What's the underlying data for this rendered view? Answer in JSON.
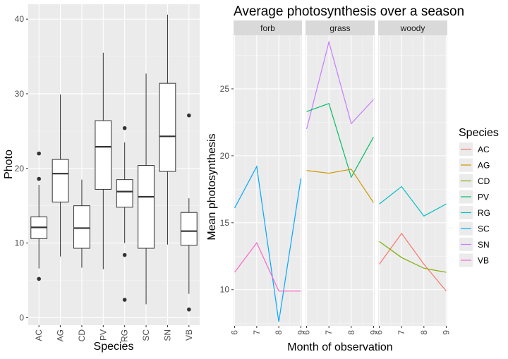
{
  "chart_data": [
    {
      "type": "box",
      "title": "",
      "xlabel": "Species",
      "ylabel": "Photo",
      "categories": [
        "AC",
        "AG",
        "CD",
        "PV",
        "RG",
        "SC",
        "SN",
        "VB"
      ],
      "ylim": [
        -1,
        42
      ],
      "y_ticks": [
        0,
        10,
        20,
        30,
        40
      ],
      "boxes": [
        {
          "category": "AC",
          "min": 6.6,
          "q1": 10.6,
          "median": 12.1,
          "q3": 13.5,
          "max": 17.8,
          "outliers": [
            22.0,
            18.6,
            5.2
          ]
        },
        {
          "category": "AG",
          "min": 8.2,
          "q1": 15.5,
          "median": 19.3,
          "q3": 21.2,
          "max": 29.9,
          "outliers": []
        },
        {
          "category": "CD",
          "min": 6.7,
          "q1": 9.3,
          "median": 12.0,
          "q3": 15.0,
          "max": 18.5,
          "outliers": []
        },
        {
          "category": "PV",
          "min": 6.5,
          "q1": 17.2,
          "median": 22.9,
          "q3": 26.4,
          "max": 35.5,
          "outliers": []
        },
        {
          "category": "RG",
          "min": 10.0,
          "q1": 14.8,
          "median": 16.9,
          "q3": 18.5,
          "max": 23.5,
          "outliers": [
            25.4,
            8.4,
            2.4
          ]
        },
        {
          "category": "SC",
          "min": 1.8,
          "q1": 9.3,
          "median": 16.2,
          "q3": 20.4,
          "max": 32.7,
          "outliers": []
        },
        {
          "category": "SN",
          "min": 9.8,
          "q1": 19.6,
          "median": 24.3,
          "q3": 31.4,
          "max": 40.6,
          "outliers": []
        },
        {
          "category": "VB",
          "min": 3.2,
          "q1": 9.7,
          "median": 11.6,
          "q3": 14.1,
          "max": 16.0,
          "outliers": [
            27.1,
            1.1
          ]
        }
      ],
      "grid": true
    },
    {
      "type": "line",
      "title": "Average photosynthesis over a season",
      "xlabel": "Month of observation",
      "ylabel": "Mean photosynthesis",
      "x_ticks": [
        6,
        7,
        8,
        9
      ],
      "xlim": [
        5.95,
        9.05
      ],
      "ylim": [
        7.3,
        29.0
      ],
      "y_ticks": [
        10,
        15,
        20,
        25
      ],
      "grid": true,
      "legend": {
        "title": "Species",
        "placement": "right"
      },
      "panels": [
        {
          "label": "forb",
          "series": [
            {
              "name": "SC",
              "x": [
                6,
                7,
                8,
                9
              ],
              "y": [
                16.1,
                19.2,
                7.6,
                18.3
              ]
            },
            {
              "name": "VB",
              "x": [
                6,
                7,
                8,
                9
              ],
              "y": [
                11.3,
                13.5,
                9.9,
                9.9
              ]
            }
          ]
        },
        {
          "label": "grass",
          "series": [
            {
              "name": "SN",
              "x": [
                6,
                7,
                8,
                9
              ],
              "y": [
                22.0,
                28.5,
                22.4,
                24.2
              ]
            },
            {
              "name": "PV",
              "x": [
                6,
                7,
                8,
                9
              ],
              "y": [
                23.3,
                23.9,
                18.4,
                21.4
              ]
            },
            {
              "name": "AG",
              "x": [
                6,
                7,
                8,
                9
              ],
              "y": [
                18.9,
                18.7,
                19.0,
                16.5
              ]
            }
          ]
        },
        {
          "label": "woody",
          "series": [
            {
              "name": "RG",
              "x": [
                6,
                7,
                8,
                9
              ],
              "y": [
                16.4,
                17.7,
                15.5,
                16.4
              ]
            },
            {
              "name": "AC",
              "x": [
                6,
                7,
                8,
                9
              ],
              "y": [
                11.9,
                14.2,
                11.9,
                9.9
              ]
            },
            {
              "name": "CD",
              "x": [
                6,
                7,
                8,
                9
              ],
              "y": [
                13.6,
                12.4,
                11.6,
                11.3
              ]
            }
          ]
        }
      ]
    }
  ],
  "species_colors": {
    "AC": "#F8766D",
    "AG": "#CD9600",
    "CD": "#7CAE00",
    "PV": "#00BE67",
    "RG": "#00BFC4",
    "SC": "#00A9FF",
    "SN": "#C77CFF",
    "VB": "#FF61CC"
  }
}
